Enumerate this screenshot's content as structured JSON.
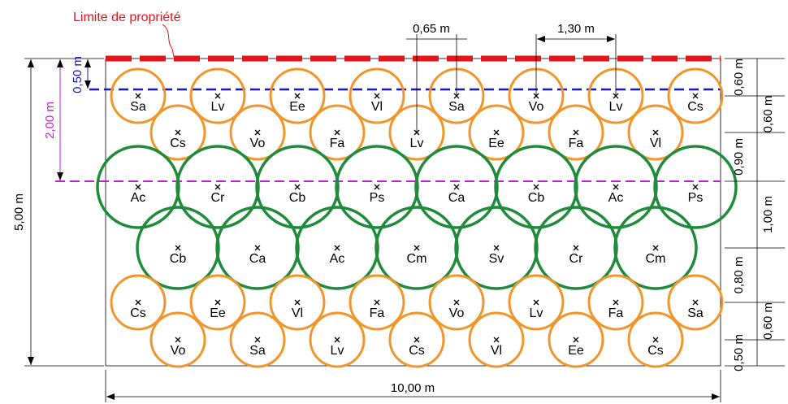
{
  "labels": {
    "property_limit": "Limite de propriété",
    "width": "10,00 m",
    "height": "5,00 m",
    "dim_065": "0,65 m",
    "dim_130": "1,30 m",
    "dim_050_left": "0,50 m",
    "dim_200_left": "2,00 m",
    "right_dims": [
      "0,60 m",
      "0,60 m",
      "0,90 m",
      "1,00 m",
      "0,80 m",
      "0,60 m",
      "0,50 m"
    ]
  },
  "colors": {
    "property_limit": "#e8141b",
    "small_tree": "#f0962a",
    "large_tree": "#1f8b3b",
    "blue_line": "#1717c4",
    "magenta_line": "#c11fd6"
  },
  "rows": [
    [
      "Sa",
      "Lv",
      "Ee",
      "Vl",
      "Sa",
      "Vo",
      "Lv",
      "Cs"
    ],
    [
      "Cs",
      "Vo",
      "Fa",
      "Lv",
      "Ee",
      "Fa",
      "Vl"
    ],
    [
      "Ac",
      "Cr",
      "Cb",
      "Ps",
      "Ca",
      "Cb",
      "Ac",
      "Ps"
    ],
    [
      "Cb",
      "Ca",
      "Ac",
      "Cm",
      "Sv",
      "Cr",
      "Cm"
    ],
    [
      "Cs",
      "Ee",
      "Vl",
      "Fa",
      "Vo",
      "Lv",
      "Fa",
      "Sa"
    ],
    [
      "Vo",
      "Sa",
      "Lv",
      "Cs",
      "Vl",
      "Ee",
      "Cs"
    ]
  ]
}
